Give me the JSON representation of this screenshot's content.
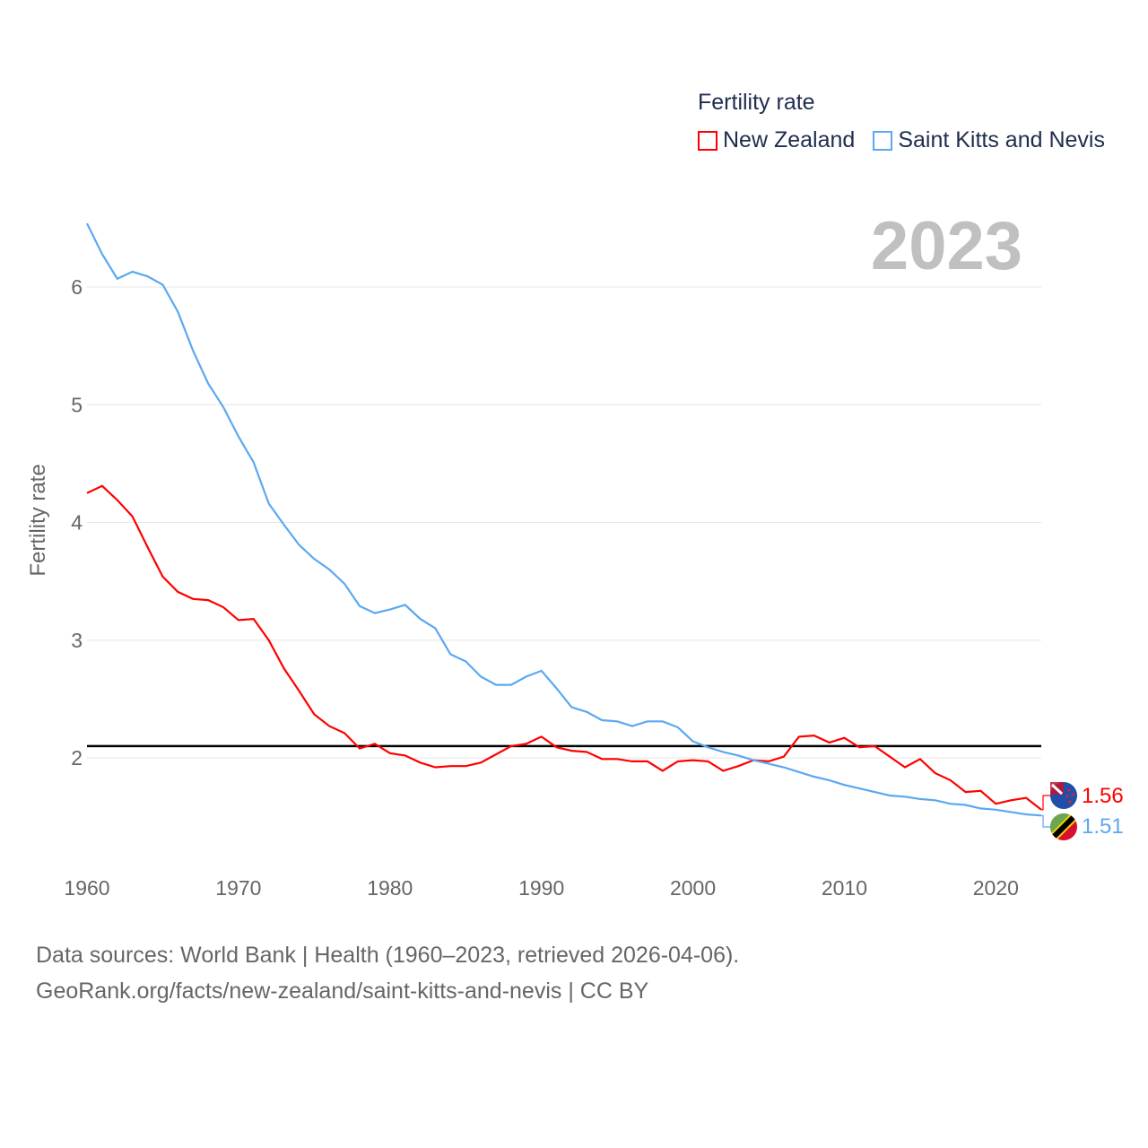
{
  "legend": {
    "title": "Fertility rate",
    "items": [
      {
        "label": "New Zealand",
        "color": "#ff0000"
      },
      {
        "label": "Saint Kitts and Nevis",
        "color": "#5ba8f0"
      }
    ]
  },
  "source": {
    "line1": "Data sources: World Bank | Health (1960–2023, retrieved 2026-04-06).",
    "line2": "GeoRank.org/facts/new-zealand/saint-kitts-and-nevis | CC BY"
  },
  "chart_data": {
    "type": "line",
    "title": "",
    "year_label": "2023",
    "xlabel": "",
    "ylabel": "Fertility rate",
    "xlim": [
      1960,
      2023
    ],
    "ylim": [
      1.0,
      6.8
    ],
    "xticks": [
      1960,
      1970,
      1980,
      1990,
      2000,
      2010,
      2020
    ],
    "yticks": [
      2,
      3,
      4,
      5,
      6
    ],
    "grid": true,
    "legend_position": "top-right",
    "reference_line": {
      "y": 2.1,
      "color": "#000000"
    },
    "x_start": 1960,
    "series": [
      {
        "name": "New Zealand",
        "color": "#ff0000",
        "end_label": "1.56",
        "values": [
          4.25,
          4.31,
          4.19,
          4.05,
          3.79,
          3.54,
          3.41,
          3.35,
          3.34,
          3.28,
          3.17,
          3.18,
          3.0,
          2.76,
          2.57,
          2.37,
          2.27,
          2.21,
          2.08,
          2.12,
          2.04,
          2.02,
          1.96,
          1.92,
          1.93,
          1.93,
          1.96,
          2.03,
          2.1,
          2.12,
          2.18,
          2.09,
          2.06,
          2.05,
          1.99,
          1.99,
          1.97,
          1.97,
          1.89,
          1.97,
          1.98,
          1.97,
          1.89,
          1.93,
          1.98,
          1.97,
          2.01,
          2.18,
          2.19,
          2.13,
          2.17,
          2.09,
          2.1,
          2.01,
          1.92,
          1.99,
          1.87,
          1.81,
          1.71,
          1.72,
          1.61,
          1.64,
          1.66,
          1.56
        ]
      },
      {
        "name": "Saint Kitts and Nevis",
        "color": "#5ba8f0",
        "end_label": "1.51",
        "values": [
          6.54,
          6.28,
          6.07,
          6.13,
          6.09,
          6.02,
          5.79,
          5.46,
          5.18,
          4.98,
          4.73,
          4.51,
          4.16,
          3.98,
          3.81,
          3.69,
          3.6,
          3.48,
          3.29,
          3.23,
          3.26,
          3.3,
          3.18,
          3.1,
          2.88,
          2.82,
          2.69,
          2.62,
          2.62,
          2.69,
          2.74,
          2.59,
          2.43,
          2.39,
          2.32,
          2.31,
          2.27,
          2.31,
          2.31,
          2.26,
          2.14,
          2.09,
          2.05,
          2.02,
          1.98,
          1.95,
          1.92,
          1.88,
          1.84,
          1.81,
          1.77,
          1.74,
          1.71,
          1.68,
          1.67,
          1.65,
          1.64,
          1.61,
          1.6,
          1.57,
          1.56,
          1.54,
          1.52,
          1.51
        ]
      }
    ]
  }
}
